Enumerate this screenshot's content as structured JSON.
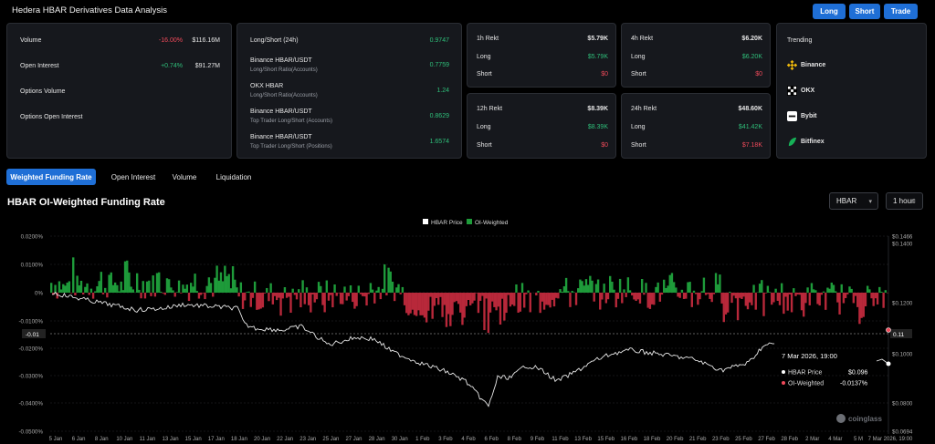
{
  "header": {
    "title": "Hedera HBAR Derivatives Data Analysis",
    "buttons": [
      "Long",
      "Short",
      "Trade"
    ]
  },
  "overview": {
    "volume": {
      "label": "Volume",
      "change": "-16.00%",
      "value": "$116.16M"
    },
    "open_interest": {
      "label": "Open Interest",
      "change": "+0.74%",
      "value": "$91.27M"
    },
    "options_volume": {
      "label": "Options Volume"
    },
    "options_open_interest": {
      "label": "Options Open Interest"
    }
  },
  "long_short": {
    "title": "Long/Short (24h)",
    "title_value": "0.9747",
    "rows": [
      {
        "name": "Binance HBAR/USDT",
        "sub": "Long/Short Ratio(Accounts)",
        "value": "0.7759"
      },
      {
        "name": "OKX HBAR",
        "sub": "Long/Short Ratio(Accounts)",
        "value": "1.24"
      },
      {
        "name": "Binance HBAR/USDT",
        "sub": "Top Trader Long/Short (Accounts)",
        "value": "0.8629"
      },
      {
        "name": "Binance HBAR/USDT",
        "sub": "Top Trader Long/Short (Positions)",
        "value": "1.6574"
      }
    ]
  },
  "rekt": [
    {
      "period": "1h Rekt",
      "total": "$5.79K",
      "long_label": "Long",
      "long": "$5.79K",
      "short_label": "Short",
      "short": "$0"
    },
    {
      "period": "4h Rekt",
      "total": "$6.20K",
      "long_label": "Long",
      "long": "$6.20K",
      "short_label": "Short",
      "short": "$0"
    },
    {
      "period": "12h Rekt",
      "total": "$8.39K",
      "long_label": "Long",
      "long": "$8.39K",
      "short_label": "Short",
      "short": "$0"
    },
    {
      "period": "24h Rekt",
      "total": "$48.60K",
      "long_label": "Long",
      "long": "$41.42K",
      "short_label": "Short",
      "short": "$7.18K"
    }
  ],
  "trending": {
    "title": "Trending",
    "items": [
      {
        "name": "Binance",
        "icon": "binance-icon",
        "color": "#f0b90b"
      },
      {
        "name": "OKX",
        "icon": "okx-icon",
        "color": "#ffffff"
      },
      {
        "name": "Bybit",
        "icon": "bybit-icon",
        "color": "#ffffff"
      },
      {
        "name": "Bitfinex",
        "icon": "bitfinex-icon",
        "color": "#16b157"
      }
    ]
  },
  "tabs": [
    "Weighted Funding Rate",
    "Open Interest",
    "Volume",
    "Liquidation"
  ],
  "section": {
    "title": "HBAR OI-Weighted Funding Rate",
    "asset_select": "HBAR",
    "interval_select": "1 hour"
  },
  "chart_data": {
    "type": "area",
    "legend": [
      "HBAR Price",
      "OI-Weighted"
    ],
    "legend_position": "top-center",
    "colors": {
      "price": "#ffffff",
      "positive": "#1e9b3a",
      "negative": "#b8283a"
    },
    "left_axis": {
      "ticks": [
        "0.0200%",
        "0.0100%",
        "0%",
        "-0.0100%",
        "-0.01",
        "-0.0200%",
        "-0.0300%",
        "-0.0400%",
        "-0.0500%"
      ],
      "range": [
        -0.05,
        0.02
      ],
      "unit": "%"
    },
    "right_axis": {
      "ticks": [
        "$0.1466",
        "$0.1400",
        "$0.1200",
        "0.11",
        "$0.1000",
        "$0.0800",
        "$0.0694"
      ],
      "range": [
        0.0694,
        0.1466
      ]
    },
    "x_ticks": [
      "5 Jan",
      "6 Jan",
      "8 Jan",
      "10 Jan",
      "11 Jan",
      "13 Jan",
      "15 Jan",
      "17 Jan",
      "18 Jan",
      "20 Jan",
      "22 Jan",
      "23 Jan",
      "25 Jan",
      "27 Jan",
      "28 Jan",
      "30 Jan",
      "1 Feb",
      "3 Feb",
      "4 Feb",
      "6 Feb",
      "8 Feb",
      "9 Feb",
      "11 Feb",
      "13 Feb",
      "15 Feb",
      "16 Feb",
      "18 Feb",
      "20 Feb",
      "21 Feb",
      "23 Feb",
      "25 Feb",
      "27 Feb",
      "28 Feb",
      "2 Mar",
      "4 Mar",
      "5 M",
      "7 Mar 2026, 19:00"
    ],
    "crosshair_y_label": "-0.01",
    "crosshair_price_label": "0.11",
    "tooltip": {
      "date": "7 Mar 2026, 19:00",
      "price_label": "HBAR Price",
      "price_value": "$0.096",
      "funding_label": "OI-Weighted",
      "funding_value": "-0.0137%"
    },
    "watermark": "coinglass"
  }
}
